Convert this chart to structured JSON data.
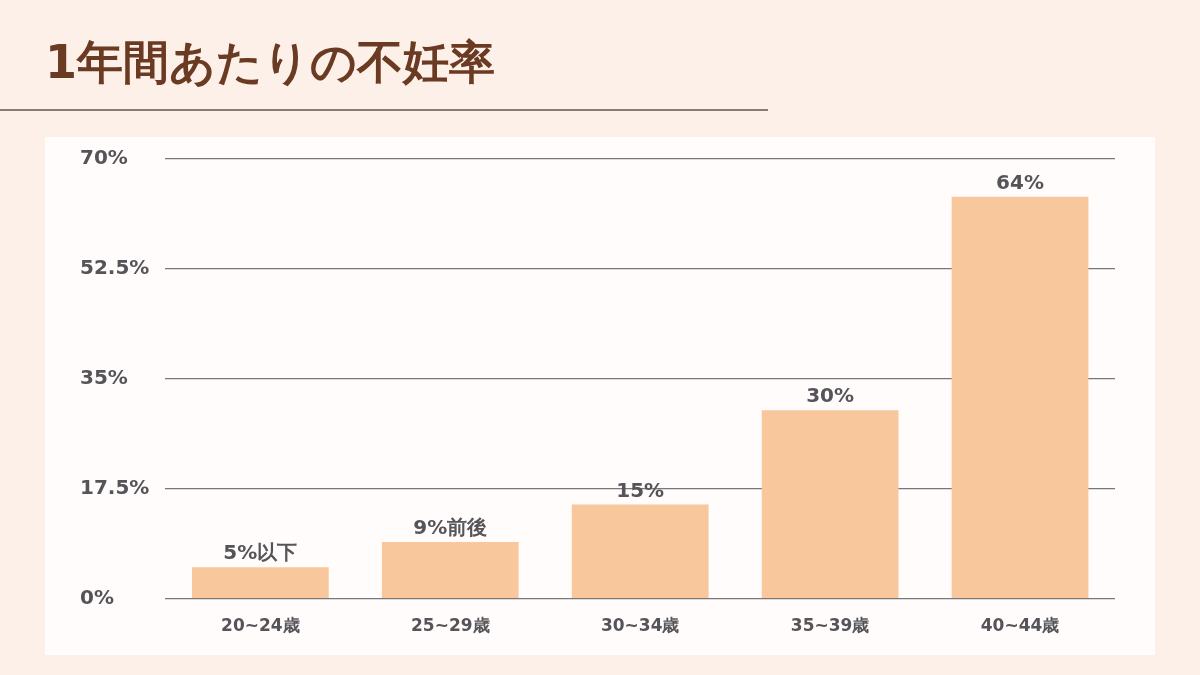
{
  "chart_data": {
    "type": "bar",
    "title": "1年間あたりの不妊率",
    "categories": [
      "20~24歳",
      "25~29歳",
      "30~34歳",
      "35~39歳",
      "40~44歳"
    ],
    "values": [
      5,
      9,
      15,
      30,
      64
    ],
    "value_labels": [
      "5%以下",
      "9%前後",
      "15%",
      "30%",
      "64%"
    ],
    "color": "#f8c89c",
    "ylim": [
      0,
      70
    ],
    "yticks": [
      {
        "value": 0,
        "label": "0%"
      },
      {
        "value": 17.5,
        "label": "17.5%"
      },
      {
        "value": 35,
        "label": "35%"
      },
      {
        "value": 52.5,
        "label": "52.5%"
      },
      {
        "value": 70,
        "label": "70%"
      }
    ],
    "grid": "y"
  }
}
